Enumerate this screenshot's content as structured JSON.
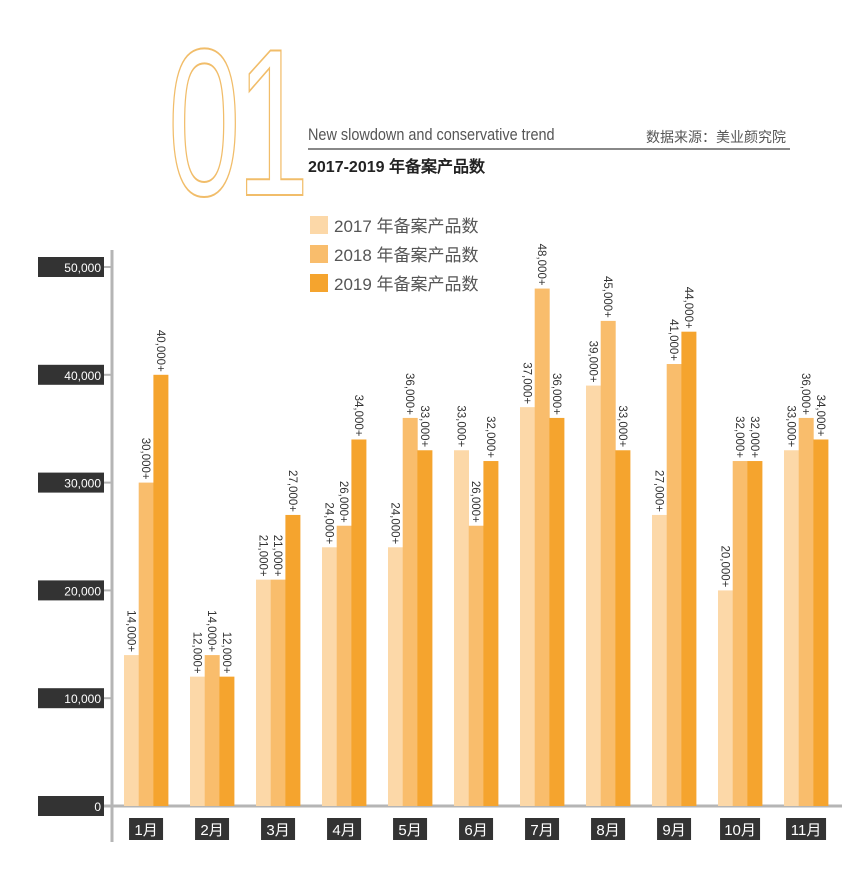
{
  "header": {
    "section_number": "01",
    "subtitle": "New slowdown and conservative trend",
    "source": "数据来源：美业颜究院",
    "title": "2017-2019 年备案产品数"
  },
  "chart_data": {
    "type": "bar",
    "title": "2017-2019 年备案产品数",
    "categories": [
      "1月",
      "2月",
      "3月",
      "4月",
      "5月",
      "6月",
      "7月",
      "8月",
      "9月",
      "10月",
      "11月"
    ],
    "series": [
      {
        "name": "2017 年备案产品数",
        "color": "#fcd8a8",
        "values": [
          14000,
          12000,
          21000,
          24000,
          24000,
          33000,
          37000,
          39000,
          27000,
          20000,
          33000
        ]
      },
      {
        "name": "2018 年备案产品数",
        "color": "#f9bd6c",
        "values": [
          30000,
          14000,
          21000,
          26000,
          36000,
          26000,
          48000,
          45000,
          41000,
          32000,
          36000
        ]
      },
      {
        "name": "2019 年备案产品数",
        "color": "#f5a42e",
        "values": [
          40000,
          12000,
          27000,
          34000,
          33000,
          32000,
          36000,
          33000,
          44000,
          32000,
          34000
        ]
      }
    ],
    "data_label_suffix": "+",
    "yticks": [
      "0",
      "10,000",
      "20,000",
      "30,000",
      "40,000",
      "50,000"
    ],
    "ylim": [
      0,
      50000
    ],
    "legend": "top-left",
    "grid": false
  }
}
